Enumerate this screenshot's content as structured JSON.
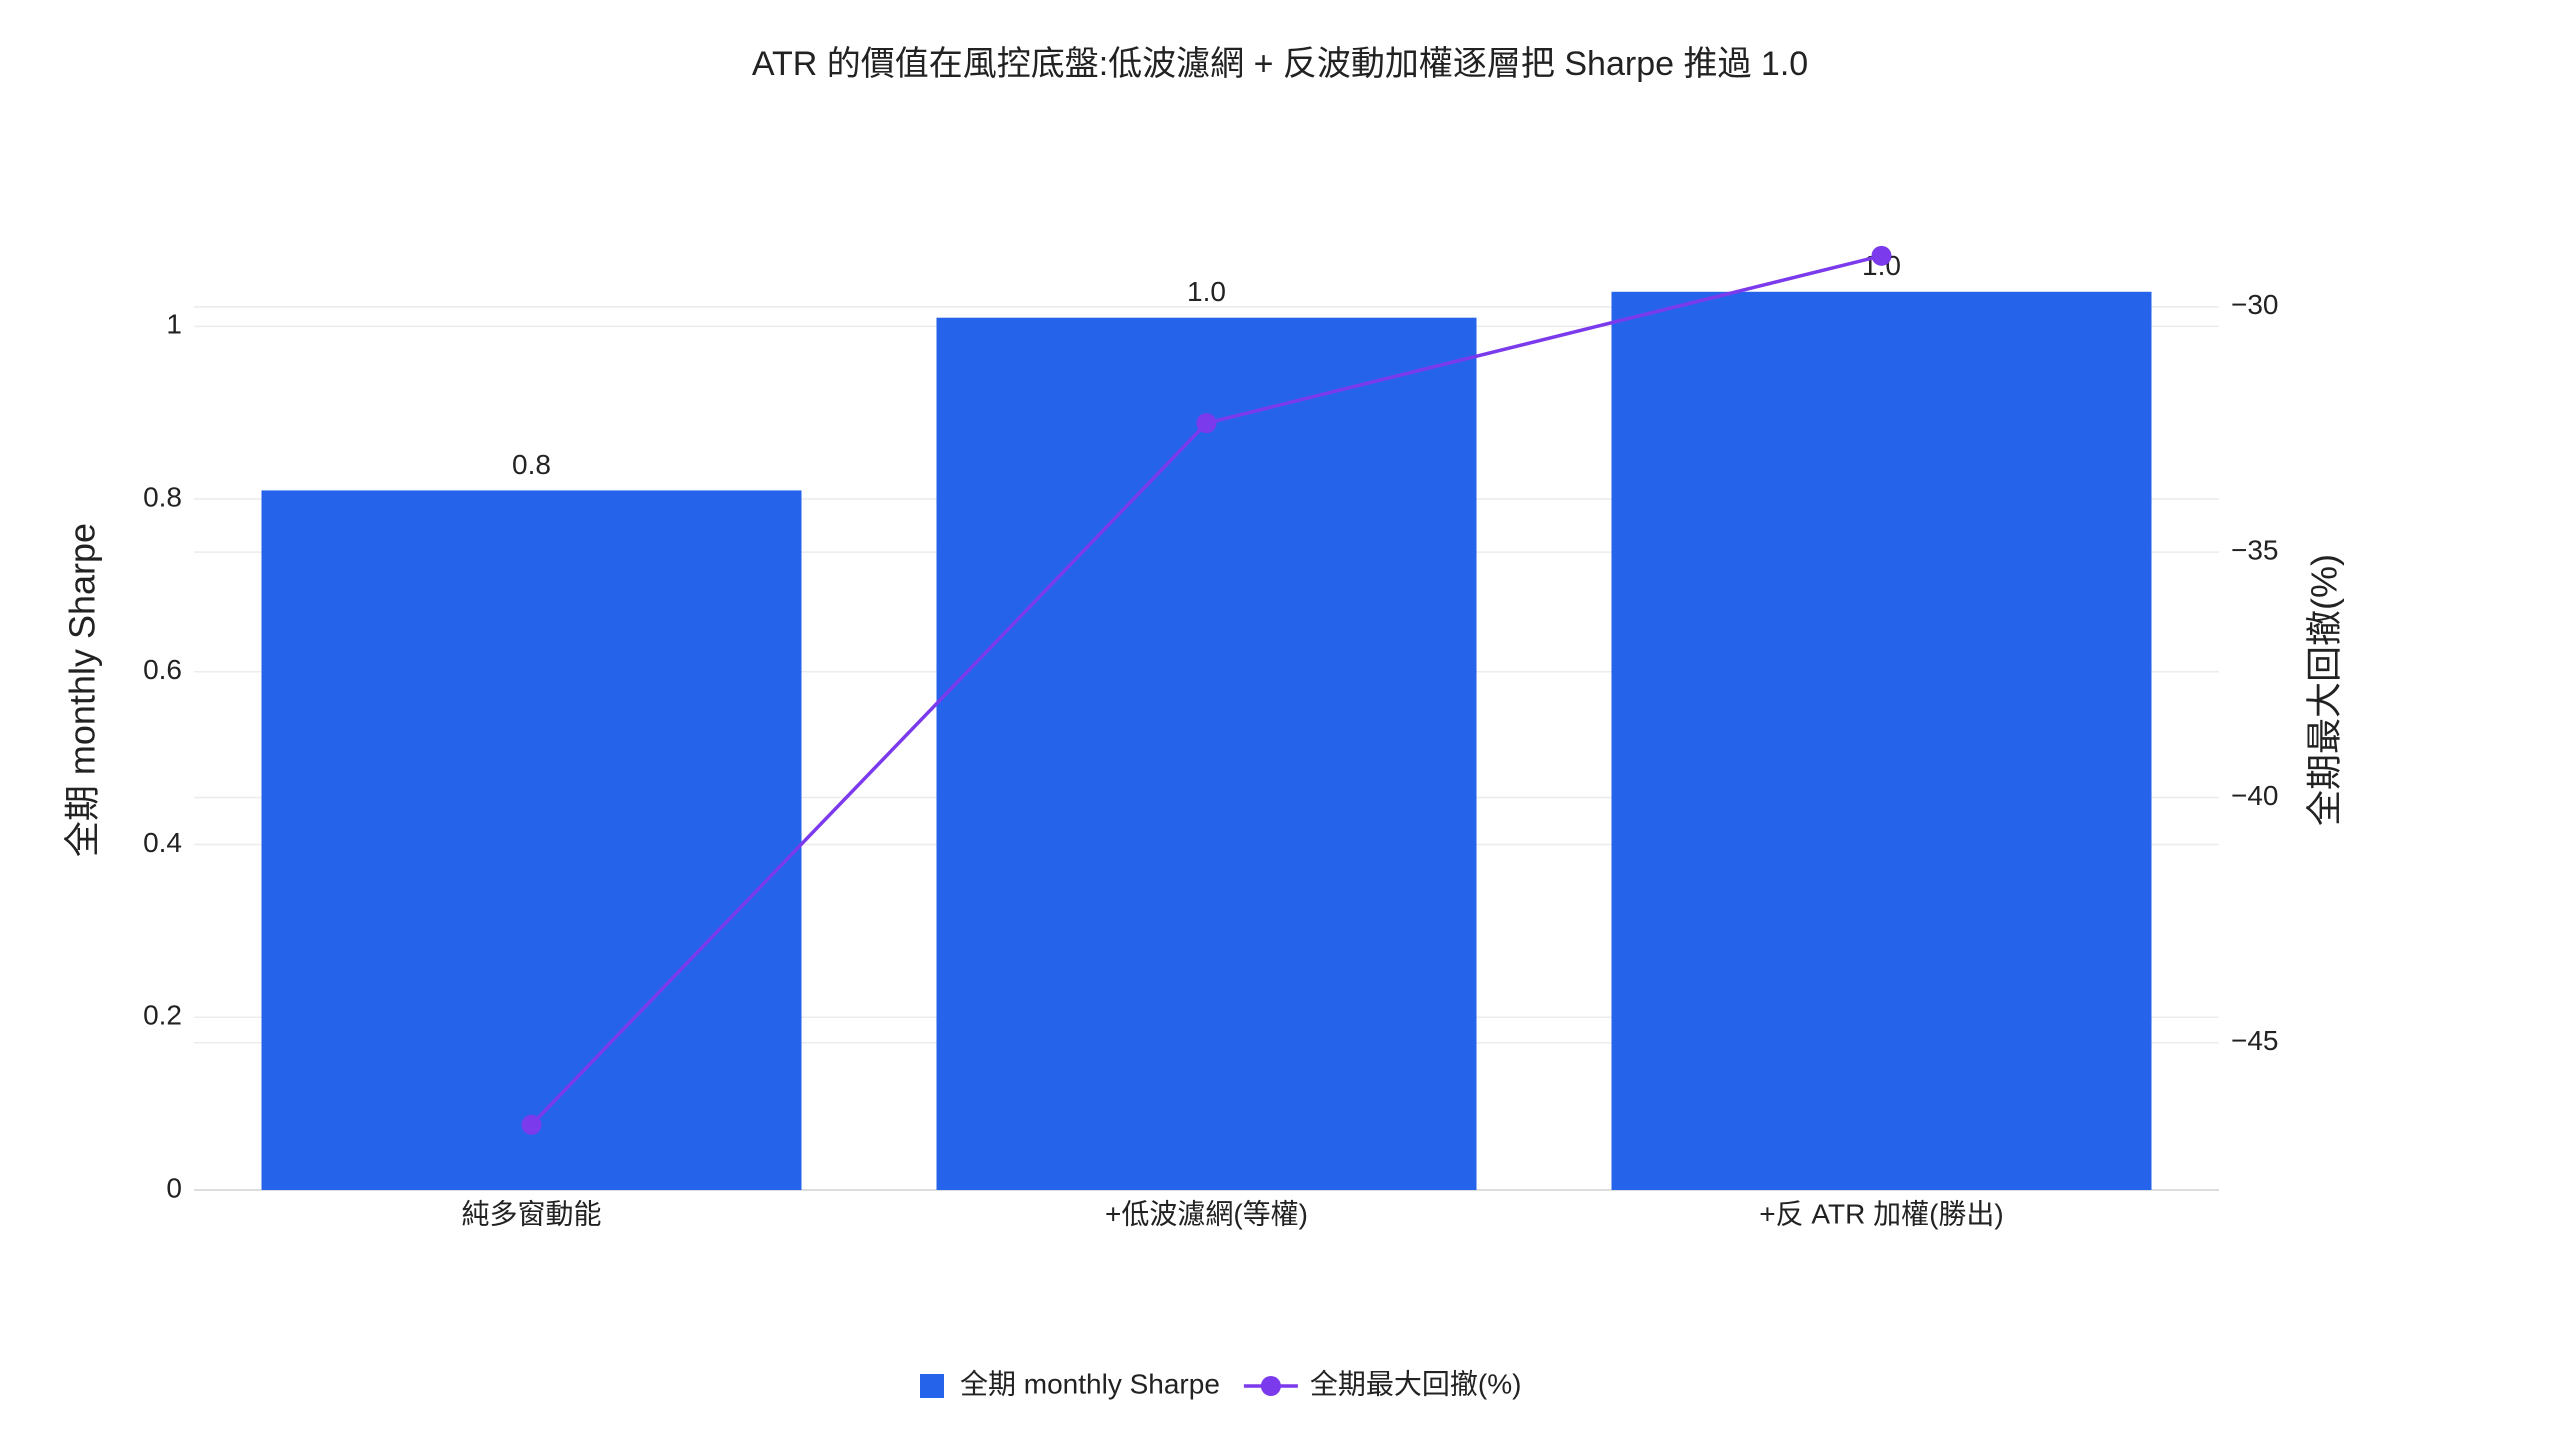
{
  "chart_data": {
    "type": "bar",
    "title": "ATR 的價值在風控底盤:低波濾網 + 反波動加權逐層把 Sharpe 推過 1.0",
    "categories": [
      "純多窗動能",
      "+低波濾網(等權)",
      "+反 ATR 加權(勝出)"
    ],
    "series": [
      {
        "name": "全期 monthly Sharpe",
        "type": "bar",
        "color": "#2563eb",
        "values": [
          0.81,
          1.01,
          1.04
        ],
        "value_labels": [
          "0.8",
          "1.0",
          "1.0"
        ]
      },
      {
        "name": "全期最大回撤(%)",
        "type": "line",
        "axis": "y2",
        "color": "#7c3aed",
        "values": [
          -46.67,
          -32.37,
          -28.96
        ]
      }
    ],
    "y_label": "全期 monthly Sharpe",
    "y2_label": "全期最大回撤(%)",
    "ylim": [
      0,
      1.093
    ],
    "yticks": [
      0,
      0.2,
      0.4,
      0.6,
      0.8,
      1
    ],
    "y2lim": [
      -48,
      -28.76
    ],
    "y2ticks": [
      {
        "value": -45,
        "label": "−45"
      },
      {
        "value": -40,
        "label": "−40"
      },
      {
        "value": -35,
        "label": "−35"
      },
      {
        "value": -30,
        "label": "−30"
      }
    ],
    "grid": true
  }
}
